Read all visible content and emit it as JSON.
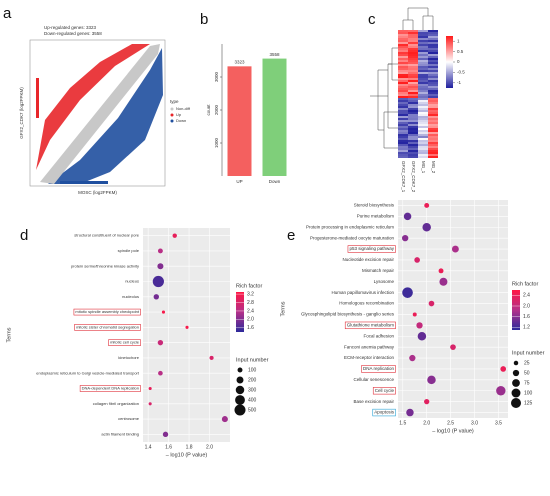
{
  "chart_data": [
    {
      "type": "scatter",
      "label": "a",
      "annotations": [
        "Up-regulated genes: 3323",
        "Down-regulated genes: 3558"
      ],
      "xlabel": "MOSC (log2FPKM)",
      "ylabel": "GFX2_CDK7 (log2FPKM)",
      "legend": {
        "title": "type",
        "entries": [
          {
            "name": "Non-diff",
            "color": "#c8c8c8"
          },
          {
            "name": "Up",
            "color": "#e8262a"
          },
          {
            "name": "Down",
            "color": "#1f4f9f"
          }
        ]
      }
    },
    {
      "type": "bar",
      "label": "b",
      "ylabel": "count",
      "categories": [
        "UP",
        "Down"
      ],
      "values": [
        3323,
        3558
      ],
      "colors": [
        "#f4605f",
        "#7fcf7a"
      ],
      "ylim": [
        0,
        4000
      ],
      "yticks": [
        1000,
        2000,
        3000
      ]
    },
    {
      "type": "heatmap",
      "label": "c",
      "columns": [
        "GFX2_CDK7_1",
        "GFX2_CDK7_2",
        "MG_1",
        "MG_2"
      ],
      "colorbar": {
        "lim": [
          -1.25,
          1.25
        ],
        "ticks": [
          1,
          0.5,
          0,
          -0.5,
          -1
        ],
        "colors": [
          "#1f1f9e",
          "#ffffff",
          "#ff1a1a"
        ]
      }
    },
    {
      "type": "dot",
      "label": "d",
      "ylabel": "Terms",
      "xlabel": "– log10 (P value)",
      "grid": true,
      "categories": [
        "structural constituent of nuclear pore",
        "spindle pole",
        "protein serine/threonine kinase activity",
        "nucleus",
        "nucleolus",
        "mitotic spindle assembly checkpoint",
        "mitotic sister chromatid segregation",
        "mitotic cell cycle",
        "kinetochore",
        "endoplasmic reticulum to Golgi vesicle-mediated transport",
        "DNA-dependent DNA replication",
        "collagen fibril organization",
        "centrosome",
        "actin filament binding"
      ],
      "values": [
        1.66,
        1.52,
        1.52,
        1.5,
        1.48,
        1.55,
        1.78,
        1.52,
        2.02,
        1.52,
        1.42,
        1.42,
        2.15,
        1.57
      ],
      "rich_factor": [
        3.0,
        2.4,
        2.0,
        1.6,
        1.9,
        3.2,
        3.2,
        2.6,
        2.8,
        2.4,
        3.0,
        2.8,
        2.2,
        2.0
      ],
      "input_number": [
        80,
        100,
        150,
        520,
        120,
        40,
        40,
        120,
        70,
        90,
        40,
        40,
        150,
        120
      ],
      "highlights": [
        {
          "index": 5,
          "color": "#e0303a"
        },
        {
          "index": 6,
          "color": "#e0303a"
        },
        {
          "index": 7,
          "color": "#e0303a"
        },
        {
          "index": 10,
          "color": "#e0303a"
        }
      ],
      "xlim": [
        1.35,
        2.2
      ],
      "xticks": [
        1.4,
        1.6,
        1.8,
        {
          "value": 2.0,
          "label": "2.0"
        }
      ],
      "color_legend": {
        "title": "Rich factor",
        "lim": [
          1.4,
          3.3
        ],
        "ticks": [
          3.2,
          2.8,
          2.4,
          {
            "value": 2.0,
            "label": "2.0"
          },
          1.6
        ],
        "colors": [
          "#2c2a9b",
          "#b4308a",
          "#ff1744"
        ]
      },
      "size_legend": {
        "title": "Input number",
        "ticks": [
          100,
          200,
          300,
          400,
          500
        ]
      }
    },
    {
      "type": "dot",
      "label": "e",
      "ylabel": "Terms",
      "xlabel": "– log10 (P value)",
      "grid": true,
      "categories": [
        "Steroid biosynthesis",
        "Purine metabolism",
        "Protein processing in endoplasmic reticulum",
        "Progesterone-mediated oocyte maturation",
        "p53 signaling pathway",
        "Nucleotide excision repair",
        "Mismatch repair",
        "Lysosome",
        "Human papillomavirus infection",
        "Homologous recombination",
        "Glycosphingolipid biosynthesis - ganglio series",
        "Glutathione metabolism",
        "Focal adhesion",
        "Fanconi anemia pathway",
        "ECM-receptor interaction",
        "DNA replication",
        "Cellular senescence",
        "Cell cycle",
        "Base excision repair",
        "Apoptosis"
      ],
      "values": [
        2.0,
        1.6,
        2.0,
        1.55,
        2.6,
        1.8,
        2.3,
        2.35,
        1.6,
        2.1,
        1.75,
        1.85,
        1.9,
        2.55,
        1.7,
        3.6,
        2.1,
        3.55,
        2.0,
        1.65
      ],
      "rich_factor": [
        2.4,
        1.4,
        1.4,
        1.6,
        1.8,
        2.2,
        2.4,
        1.7,
        1.2,
        2.2,
        2.4,
        2.0,
        1.4,
        2.2,
        1.8,
        2.4,
        1.6,
        1.7,
        2.3,
        1.5
      ],
      "input_number": [
        30,
        70,
        90,
        50,
        60,
        40,
        30,
        80,
        140,
        40,
        20,
        50,
        90,
        40,
        50,
        40,
        90,
        110,
        35,
        70
      ],
      "highlights": [
        {
          "index": 4,
          "color": "#e0303a"
        },
        {
          "index": 11,
          "color": "#e0303a"
        },
        {
          "index": 15,
          "color": "#e0303a"
        },
        {
          "index": 17,
          "color": "#e0303a"
        },
        {
          "index": 19,
          "color": "#2aa3d6"
        }
      ],
      "xlim": [
        1.4,
        3.7
      ],
      "xticks": [
        1.5,
        {
          "value": 2.0,
          "label": "2.0"
        },
        2.5,
        {
          "value": 3.0,
          "label": "3.0"
        },
        3.5
      ],
      "color_legend": {
        "title": "Rich factor",
        "lim": [
          1.1,
          2.6
        ],
        "ticks": [
          2.4,
          {
            "value": 2.0,
            "label": "2.0"
          },
          1.6,
          1.2
        ],
        "colors": [
          "#2c2a9b",
          "#b4308a",
          "#ff1744"
        ]
      },
      "size_legend": {
        "title": "Input number",
        "ticks": [
          25,
          50,
          75,
          100,
          125
        ]
      }
    }
  ]
}
